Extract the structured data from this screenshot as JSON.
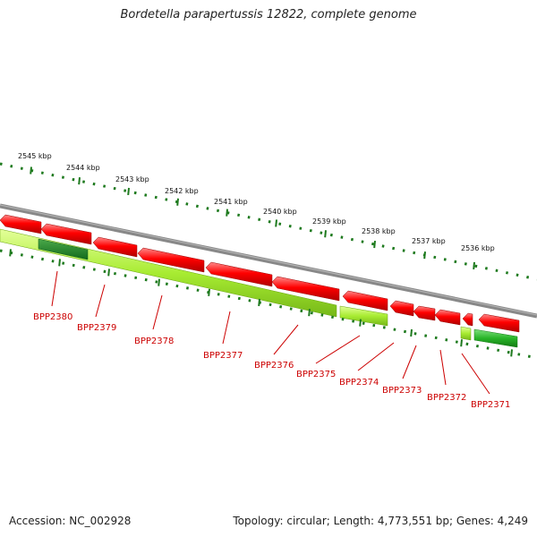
{
  "title": "Bordetella parapertussis 12822, complete genome",
  "footer": {
    "accession": "Accession: NC_002928",
    "summary": "Topology: circular; Length: 4,773,551 bp; Genes: 4,249"
  },
  "colors": {
    "backbone": "#808080",
    "forward_gene": "#ff0000",
    "reverse_gene": "#a5e830",
    "reverse_gene_dark": "#1f8a2a",
    "tick": "#1e7a1e",
    "gene_label": "#cc0000",
    "scale_label": "#111111"
  },
  "scale_labels": [
    "2545 kbp",
    "2544 kbp",
    "2543 kbp",
    "2542 kbp",
    "2541 kbp",
    "2540 kbp",
    "2539 kbp",
    "2538 kbp",
    "2537 kbp",
    "2536 kbp"
  ],
  "genes": [
    {
      "label": "BPP2380"
    },
    {
      "label": "BPP2379"
    },
    {
      "label": "BPP2378"
    },
    {
      "label": "BPP2377"
    },
    {
      "label": "BPP2376"
    },
    {
      "label": "BPP2375"
    },
    {
      "label": "BPP2374"
    },
    {
      "label": "BPP2373"
    },
    {
      "label": "BPP2372"
    },
    {
      "label": "BPP2371"
    }
  ]
}
